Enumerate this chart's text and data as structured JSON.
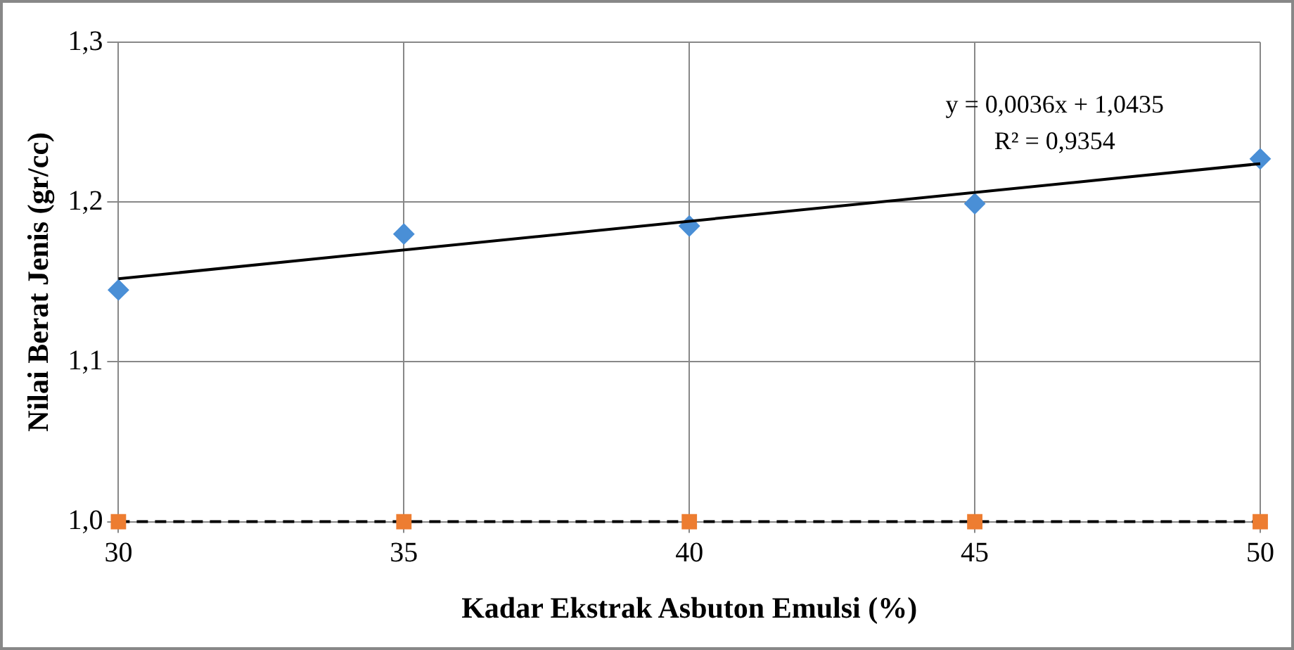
{
  "chart_data": {
    "type": "scatter",
    "xlabel": "Kadar Ekstrak Asbuton Emulsi (%)",
    "ylabel": "Nilai Berat Jenis (gr/cc)",
    "x": [
      30,
      35,
      40,
      45,
      50
    ],
    "xlim": [
      30,
      50
    ],
    "xticks": [
      30,
      35,
      40,
      45,
      50
    ],
    "ylim": [
      1,
      1.3
    ],
    "yticks": [
      {
        "value": 1,
        "label": "1,0"
      },
      {
        "value": 1.1,
        "label": "1,1"
      },
      {
        "value": 1.2,
        "label": "1,2"
      },
      {
        "value": 1.3,
        "label": "1,3"
      }
    ],
    "grid": true,
    "annotations": [
      "y = 0,0036x + 1,0435",
      "R² = 0,9354"
    ],
    "series": [
      {
        "color": "#4a8fd6",
        "marker": "diamond",
        "values": [
          1.145,
          1.18,
          1.185,
          1.199,
          1.227
        ]
      },
      {
        "type": "line",
        "color": "#000000",
        "marker": "none",
        "x": [
          30,
          50
        ],
        "values": [
          1.152,
          1.224
        ]
      },
      {
        "type": "line",
        "color": "#000000",
        "marker": "none",
        "line_style": "dashed",
        "values": [
          1,
          1,
          1,
          1,
          1
        ]
      },
      {
        "color": "#ed7d31",
        "marker": "square",
        "values": [
          1,
          1,
          1,
          1,
          1
        ]
      }
    ]
  }
}
